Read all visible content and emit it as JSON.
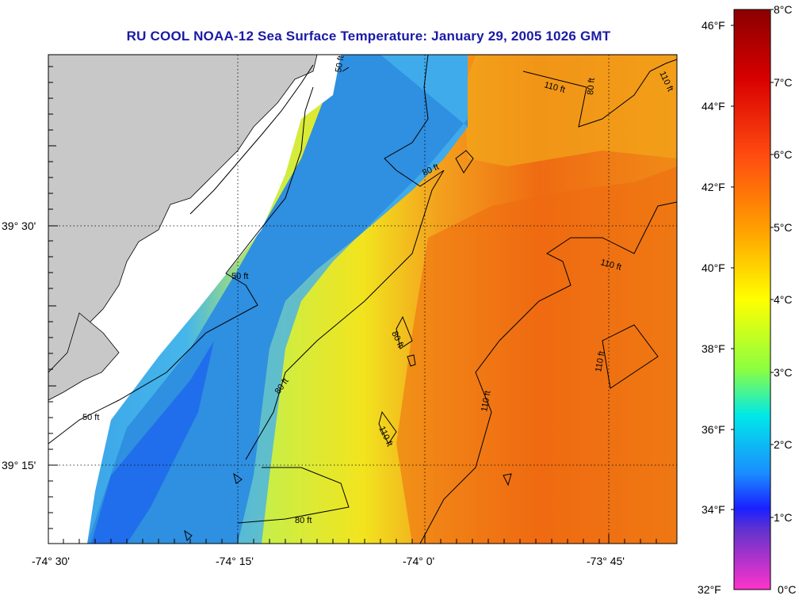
{
  "title": "RU COOL  NOAA-12  Sea Surface Temperature:  January 29, 2005 1026 GMT",
  "map": {
    "x_ticks": [
      "-74° 30'",
      "-74° 15'",
      "-74° 0'",
      "-73° 45'"
    ],
    "y_ticks": [
      "39° 30'",
      "39° 15'"
    ],
    "contour_labels": [
      "50 ft",
      "50 ft",
      "50 ft",
      "80 ft",
      "80 ft",
      "80 ft",
      "80 ft",
      "80 ft",
      "110 ft",
      "110 ft",
      "110 ft",
      "110 ft",
      "110 ft",
      "110 ft"
    ],
    "colors": {
      "land": "#c8c8c8",
      "coast_nodata": "#ffffff"
    }
  },
  "colorbar": {
    "fahrenheit_labels": [
      "46°F",
      "44°F",
      "42°F",
      "40°F",
      "38°F",
      "36°F",
      "34°F",
      "32°F"
    ],
    "celsius_labels": [
      "8°C",
      "7°C",
      "6°C",
      "5°C",
      "4°C",
      "3°C",
      "2°C",
      "1°C",
      "0°C"
    ],
    "gradient": [
      "#8b0000",
      "#ff1a1a",
      "#ff7a00",
      "#ffd200",
      "#ffff00",
      "#8cff40",
      "#00e8e8",
      "#0090ff",
      "#1a28ff",
      "#6633cc",
      "#ff33cc"
    ]
  }
}
